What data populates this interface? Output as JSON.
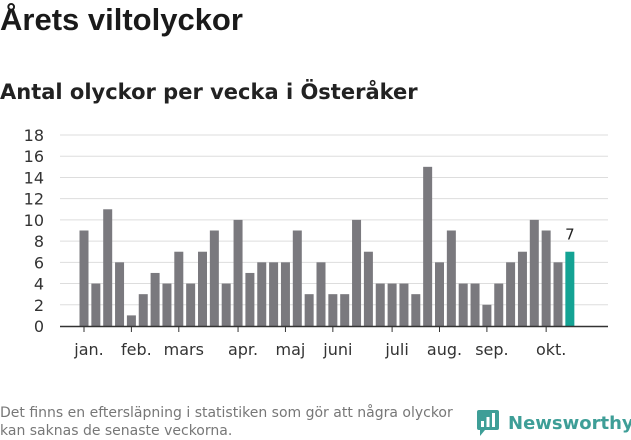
{
  "header": {
    "title": "Årets viltolyckor",
    "subtitle": "Antal olyckor per vecka i Österåker"
  },
  "footer": {
    "note": "Det finns en eftersläpning i statistiken som gör att några olyckor kan saknas de senaste veckorna.",
    "brand": "Newsworthy",
    "brand_icon": "newsworthy-logo-icon"
  },
  "colors": {
    "bar": "#7a797e",
    "highlight": "#14a394",
    "grid": "#dddddd",
    "axis": "#333333",
    "brand": "#3e9e97"
  },
  "chart_data": {
    "type": "bar",
    "title": "Antal olyckor per vecka i Österåker",
    "xlabel": "",
    "ylabel": "",
    "ylim": [
      0,
      18
    ],
    "yticks": [
      0,
      2,
      4,
      6,
      8,
      10,
      12,
      14,
      16,
      18
    ],
    "grid": true,
    "values": [
      9,
      4,
      11,
      6,
      1,
      3,
      5,
      4,
      7,
      4,
      7,
      9,
      4,
      10,
      5,
      6,
      6,
      6,
      9,
      3,
      6,
      3,
      3,
      10,
      7,
      4,
      4,
      4,
      3,
      15,
      6,
      9,
      4,
      4,
      2,
      4,
      6,
      7,
      10,
      9,
      6,
      7
    ],
    "highlight_index": 41,
    "highlight_label": "7",
    "month_labels": [
      {
        "label": "jan.",
        "bar_index": 0
      },
      {
        "label": "feb.",
        "bar_index": 4
      },
      {
        "label": "mars",
        "bar_index": 8
      },
      {
        "label": "apr.",
        "bar_index": 13
      },
      {
        "label": "maj",
        "bar_index": 17
      },
      {
        "label": "juni",
        "bar_index": 21
      },
      {
        "label": "juli",
        "bar_index": 26
      },
      {
        "label": "aug.",
        "bar_index": 30
      },
      {
        "label": "sep.",
        "bar_index": 34
      },
      {
        "label": "okt.",
        "bar_index": 39
      }
    ]
  }
}
